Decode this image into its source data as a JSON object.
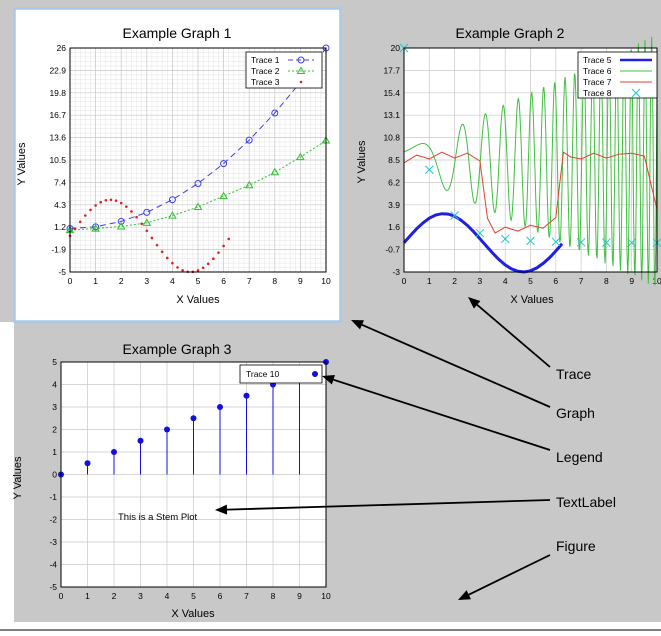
{
  "figure": {
    "background": "#c8c8c8",
    "selection_color": "#a8c8e8"
  },
  "chart_data": [
    {
      "type": "line",
      "title": "Example Graph 1",
      "xlabel": "X Values",
      "ylabel": "Y Values",
      "xlim": [
        0,
        10
      ],
      "ylim": [
        -5,
        26
      ],
      "xticks": [
        "0",
        "1",
        "2",
        "3",
        "4",
        "5",
        "6",
        "7",
        "8",
        "9",
        "10"
      ],
      "yticks": [
        "-5",
        "-1.9",
        "1.2",
        "4.3",
        "7.4",
        "10.5",
        "13.6",
        "16.7",
        "19.8",
        "22.9",
        "26"
      ],
      "grid": "minor",
      "legend_position": "top-right",
      "series": [
        {
          "name": "Trace 1",
          "color": "#4040e0",
          "marker": "circle",
          "dash": "dashed",
          "x": [
            0,
            1,
            2,
            3,
            4,
            5,
            6,
            7,
            8,
            9,
            10
          ],
          "y": [
            1,
            1.25,
            2,
            3.25,
            5,
            7.25,
            10,
            13.25,
            17,
            21.25,
            26
          ]
        },
        {
          "name": "Trace 2",
          "color": "#30c030",
          "marker": "triangle",
          "dash": "dotted",
          "x": [
            0,
            1,
            2,
            3,
            4,
            5,
            6,
            7,
            8,
            9,
            10
          ],
          "y": [
            0.8,
            1.0,
            1.3,
            1.8,
            2.8,
            4.0,
            5.5,
            7.0,
            8.8,
            10.9,
            13.2
          ]
        },
        {
          "name": "Trace 3",
          "color": "#e02020",
          "marker": "dot",
          "dash": "none",
          "x": [
            0,
            0.2,
            0.4,
            0.6,
            0.8,
            1.0,
            1.2,
            1.4,
            1.6,
            1.8,
            2.0,
            2.2,
            2.4,
            2.6,
            2.8,
            3.0,
            3.2,
            3.4,
            3.6,
            3.8,
            4.0,
            4.2,
            4.4,
            4.6,
            4.8,
            5.0,
            5.2,
            5.4,
            5.6,
            5.8,
            6.0,
            6.2
          ],
          "y": [
            0,
            0.99,
            1.95,
            2.82,
            3.59,
            4.21,
            4.66,
            4.93,
            5.0,
            4.87,
            4.55,
            4.04,
            3.38,
            2.58,
            1.67,
            0.71,
            -0.29,
            -1.28,
            -2.21,
            -3.06,
            -3.78,
            -4.36,
            -4.76,
            -4.97,
            -4.98,
            -4.79,
            -4.42,
            -3.86,
            -3.16,
            -2.32,
            -1.4,
            -0.42
          ]
        }
      ]
    },
    {
      "type": "line",
      "title": "Example Graph 2",
      "xlabel": "X Values",
      "ylabel": "Y Values",
      "xlim": [
        0,
        10
      ],
      "ylim": [
        -3,
        20
      ],
      "xticks": [
        "0",
        "1",
        "2",
        "3",
        "4",
        "5",
        "6",
        "7",
        "8",
        "9",
        "10"
      ],
      "yticks": [
        "-3",
        "-0.7",
        "1.6",
        "3.9",
        "6.2",
        "8.5",
        "10.8",
        "13.1",
        "15.4",
        "17.7",
        "20"
      ],
      "grid": "major",
      "legend_position": "top-right",
      "series": [
        {
          "name": "Trace 5",
          "color": "#2020e0",
          "marker": "none",
          "dash": "solid",
          "x": [
            0,
            0.25,
            0.5,
            0.75,
            1.0,
            1.25,
            1.5,
            1.75,
            2.0,
            2.25,
            2.5,
            2.75,
            3.0,
            3.25,
            3.5,
            3.75,
            4.0,
            4.25,
            4.5,
            4.75,
            5.0,
            5.25,
            5.5,
            5.75,
            6.0,
            6.25
          ],
          "y": [
            0,
            0.74,
            1.44,
            2.04,
            2.52,
            2.85,
            2.99,
            2.95,
            2.73,
            2.33,
            1.8,
            1.14,
            0.42,
            -0.32,
            -1.05,
            -1.72,
            -2.27,
            -2.68,
            -2.93,
            -3.0,
            -2.88,
            -2.58,
            -2.12,
            -1.54,
            -0.84,
            -0.1
          ]
        },
        {
          "name": "Trace 6",
          "color": "#40c040",
          "marker": "none",
          "dash": "solid",
          "x": [],
          "y": []
        },
        {
          "name": "Trace 7",
          "color": "#e04030",
          "marker": "none",
          "dash": "solid",
          "x": [
            0,
            0.5,
            1,
            1.5,
            2,
            2.5,
            3,
            3.3,
            3.6,
            4,
            4.5,
            5,
            5.5,
            6,
            6.3,
            6.6,
            7,
            7.5,
            8,
            8.5,
            9,
            9.5,
            10
          ],
          "y": [
            8.2,
            9.0,
            8.6,
            9.3,
            8.7,
            9.2,
            8.4,
            2.5,
            1.0,
            1.6,
            1.2,
            1.8,
            1.5,
            2.6,
            9.3,
            8.8,
            8.6,
            9.2,
            8.7,
            9.1,
            9.2,
            8.9,
            3.4
          ]
        },
        {
          "name": "Trace 8",
          "color": "#20c8d0",
          "marker": "x",
          "dash": "none",
          "x": [
            0,
            1,
            2,
            3,
            4,
            5,
            6,
            7,
            8,
            9,
            10
          ],
          "y": [
            20,
            7.5,
            2.8,
            1.0,
            0.4,
            0.2,
            0.1,
            0.05,
            0.02,
            0.01,
            0.0
          ]
        }
      ]
    },
    {
      "type": "stem",
      "title": "Example Graph 3",
      "xlabel": "X Values",
      "ylabel": "Y Values",
      "xlim": [
        0,
        10
      ],
      "ylim": [
        -5,
        5
      ],
      "xticks": [
        "0",
        "1",
        "2",
        "3",
        "4",
        "5",
        "6",
        "7",
        "8",
        "9",
        "10"
      ],
      "yticks": [
        "-5",
        "-4",
        "-3",
        "-2",
        "-1",
        "0",
        "1",
        "2",
        "3",
        "4",
        "5"
      ],
      "grid": "major",
      "legend_position": "top-right",
      "annotation": "This is a Stem Plot",
      "series": [
        {
          "name": "Trace 10",
          "color": "#1010e0",
          "marker": "filled-circle",
          "x": [
            0,
            1,
            2,
            3,
            4,
            5,
            6,
            7,
            8,
            9,
            10
          ],
          "y": [
            0,
            0.5,
            1,
            1.5,
            2,
            2.5,
            3,
            3.5,
            4,
            4.5,
            5
          ]
        }
      ]
    }
  ],
  "callouts": [
    {
      "label": "Trace"
    },
    {
      "label": "Graph"
    },
    {
      "label": "Legend"
    },
    {
      "label": "TextLabel"
    },
    {
      "label": "Figure"
    }
  ]
}
